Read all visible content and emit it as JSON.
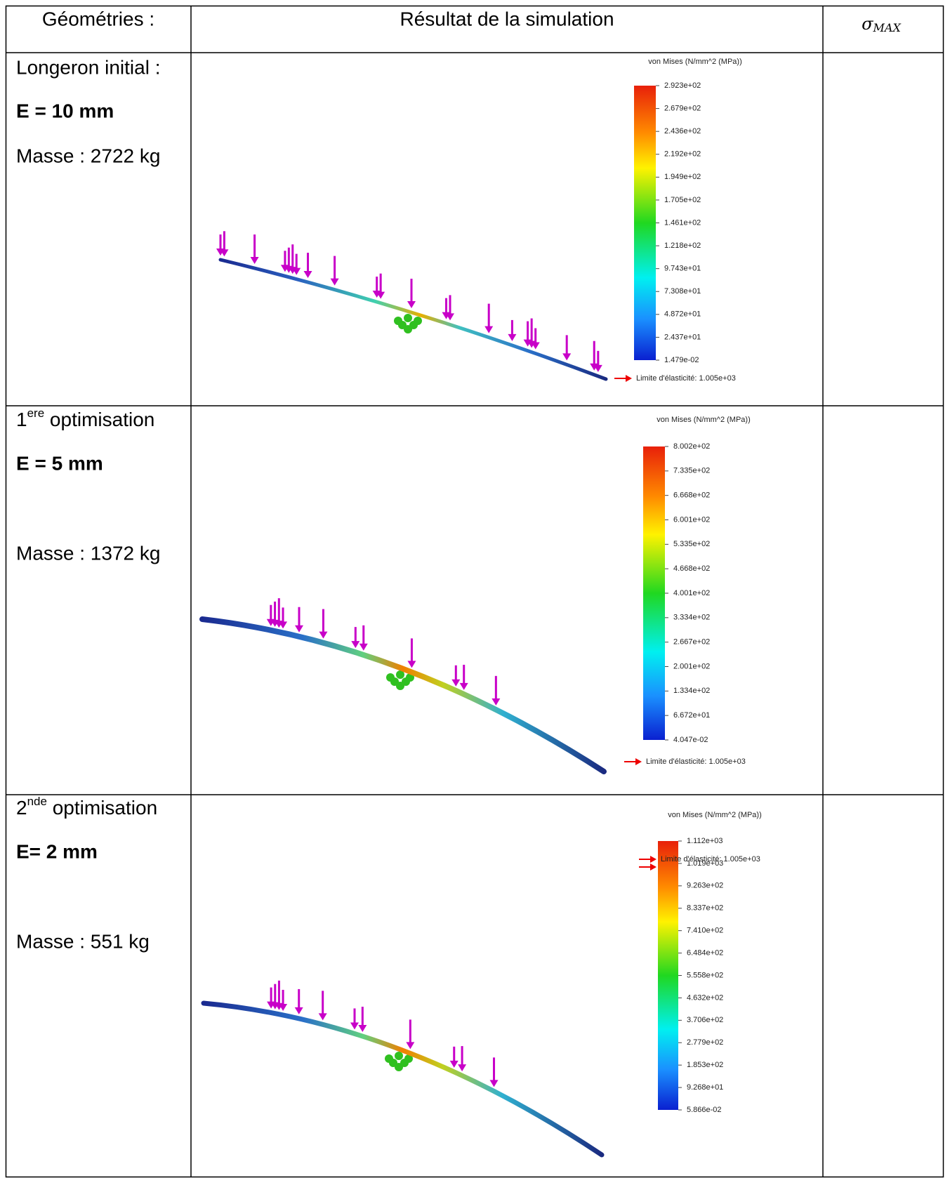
{
  "table": {
    "header": {
      "geometry": "Géométries :",
      "result": "Résultat de la simulation",
      "sigma": "σ",
      "sigma_sub": "MAX"
    },
    "rows": [
      {
        "name": "Longeron initial :",
        "thickness": "E = 10 mm",
        "mass": "Masse : 2722 kg",
        "legend": {
          "title": "von Mises (N/mm^2 (MPa))",
          "ticks": [
            "2.923e+02",
            "2.679e+02",
            "2.436e+02",
            "2.192e+02",
            "1.949e+02",
            "1.705e+02",
            "1.461e+02",
            "1.218e+02",
            "9.743e+01",
            "7.308e+01",
            "4.872e+01",
            "2.437e+01",
            "1.479e-02"
          ],
          "limit": "Limite d'élasticité: 1.005e+03"
        }
      },
      {
        "name_number": "1",
        "name_sup": "ere",
        "name_text": " optimisation",
        "thickness": "E = 5 mm",
        "mass": "Masse : 1372 kg",
        "legend": {
          "title": "von Mises (N/mm^2 (MPa))",
          "ticks": [
            "8.002e+02",
            "7.335e+02",
            "6.668e+02",
            "6.001e+02",
            "5.335e+02",
            "4.668e+02",
            "4.001e+02",
            "3.334e+02",
            "2.667e+02",
            "2.001e+02",
            "1.334e+02",
            "6.672e+01",
            "4.047e-02"
          ],
          "limit": "Limite d'élasticité: 1.005e+03"
        }
      },
      {
        "name_number": "2",
        "name_sup": "nde",
        "name_text": " optimisation",
        "thickness": "E= 2 mm",
        "mass": "Masse : 551 kg",
        "legend": {
          "title": "von Mises (N/mm^2 (MPa))",
          "ticks": [
            "1.112e+03",
            "1.019e+03",
            "9.263e+02",
            "8.337e+02",
            "7.410e+02",
            "6.484e+02",
            "5.558e+02",
            "4.632e+02",
            "3.706e+02",
            "2.779e+02",
            "1.853e+02",
            "9.268e+01",
            "5.866e-02"
          ],
          "limit": "Limite d'élasticité: 1.005e+03"
        }
      }
    ]
  }
}
